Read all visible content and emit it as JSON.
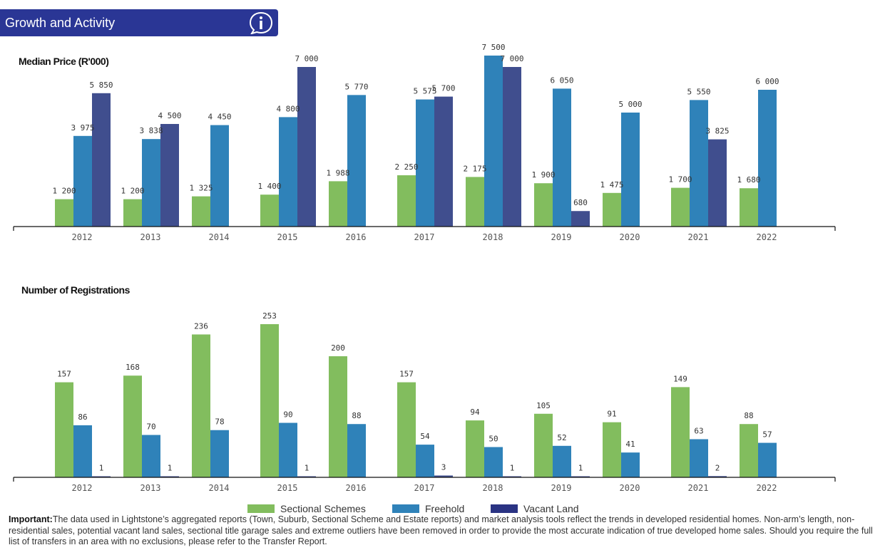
{
  "header": {
    "title": "Growth and Activity",
    "info_icon": "info-icon"
  },
  "colors": {
    "sectional": "#82bd5e",
    "freehold": "#2f82b9",
    "vacant": "#404e8e",
    "header": "#2a3695"
  },
  "legend": [
    {
      "label": "Sectional Schemes",
      "color": "#82bd5e"
    },
    {
      "label": "Freehold",
      "color": "#2f82b9"
    },
    {
      "label": "Vacant Land",
      "color": "#2a3383"
    }
  ],
  "chart_data": [
    {
      "type": "bar",
      "title": "Median Price (R'000)",
      "categories": [
        "2012",
        "2013",
        "2014",
        "2015",
        "2016",
        "2017",
        "2018",
        "2019",
        "2020",
        "2021",
        "2022"
      ],
      "ylim": [
        0,
        7500
      ],
      "series": [
        {
          "name": "Sectional Schemes",
          "values": [
            1200,
            1200,
            1325,
            1400,
            1988,
            2250,
            2175,
            1900,
            1475,
            1700,
            1680
          ],
          "labels": [
            "1 200",
            "1 200",
            "1 325",
            "1 400",
            "1 988",
            "2 250",
            "2 175",
            "1 900",
            "1 475",
            "1 700",
            "1 680"
          ]
        },
        {
          "name": "Freehold",
          "values": [
            3975,
            3838,
            4450,
            4800,
            5770,
            5575,
            7500,
            6050,
            5000,
            5550,
            6000
          ],
          "labels": [
            "3 975",
            "3 838",
            "4 450",
            "4 800",
            "5 770",
            "5 575",
            "7 500",
            "6 050",
            "5 000",
            "5 550",
            "6 000"
          ]
        },
        {
          "name": "Vacant Land",
          "values": [
            5850,
            4500,
            null,
            7000,
            null,
            5700,
            7000,
            680,
            null,
            3825,
            null
          ],
          "labels": [
            "5 850",
            "4 500",
            null,
            "7 000",
            null,
            "5 700",
            "7 000",
            "680",
            null,
            "3 825",
            null
          ]
        }
      ]
    },
    {
      "type": "bar",
      "title": "Number of Registrations",
      "categories": [
        "2012",
        "2013",
        "2014",
        "2015",
        "2016",
        "2017",
        "2018",
        "2019",
        "2020",
        "2021",
        "2022"
      ],
      "ylim": [
        0,
        253
      ],
      "series": [
        {
          "name": "Sectional Schemes",
          "values": [
            157,
            168,
            236,
            253,
            200,
            157,
            94,
            105,
            91,
            149,
            88
          ],
          "labels": [
            "157",
            "168",
            "236",
            "253",
            "200",
            "157",
            "94",
            "105",
            "91",
            "149",
            "88"
          ]
        },
        {
          "name": "Freehold",
          "values": [
            86,
            70,
            78,
            90,
            88,
            54,
            50,
            52,
            41,
            63,
            57
          ],
          "labels": [
            "86",
            "70",
            "78",
            "90",
            "88",
            "54",
            "50",
            "52",
            "41",
            "63",
            "57"
          ]
        },
        {
          "name": "Vacant Land",
          "values": [
            1,
            1,
            null,
            1,
            null,
            3,
            1,
            1,
            null,
            2,
            null
          ],
          "labels": [
            "1",
            "1",
            null,
            "1",
            null,
            "3",
            "1",
            "1",
            null,
            "2",
            null
          ]
        }
      ]
    }
  ],
  "note": {
    "prefix": "Important:",
    "text": "The data used in Lightstone’s aggregated reports (Town, Suburb, Sectional Scheme and Estate reports) and market analysis tools reflect the trends in developed residential homes. Non-arm’s length, non-residential sales, potential vacant land sales, sectional title garage sales and extreme outliers have been removed in order to provide the most accurate indication of true developed home sales. Should you require the full list of transfers in an area with no exclusions, please refer to the Transfer Report."
  }
}
